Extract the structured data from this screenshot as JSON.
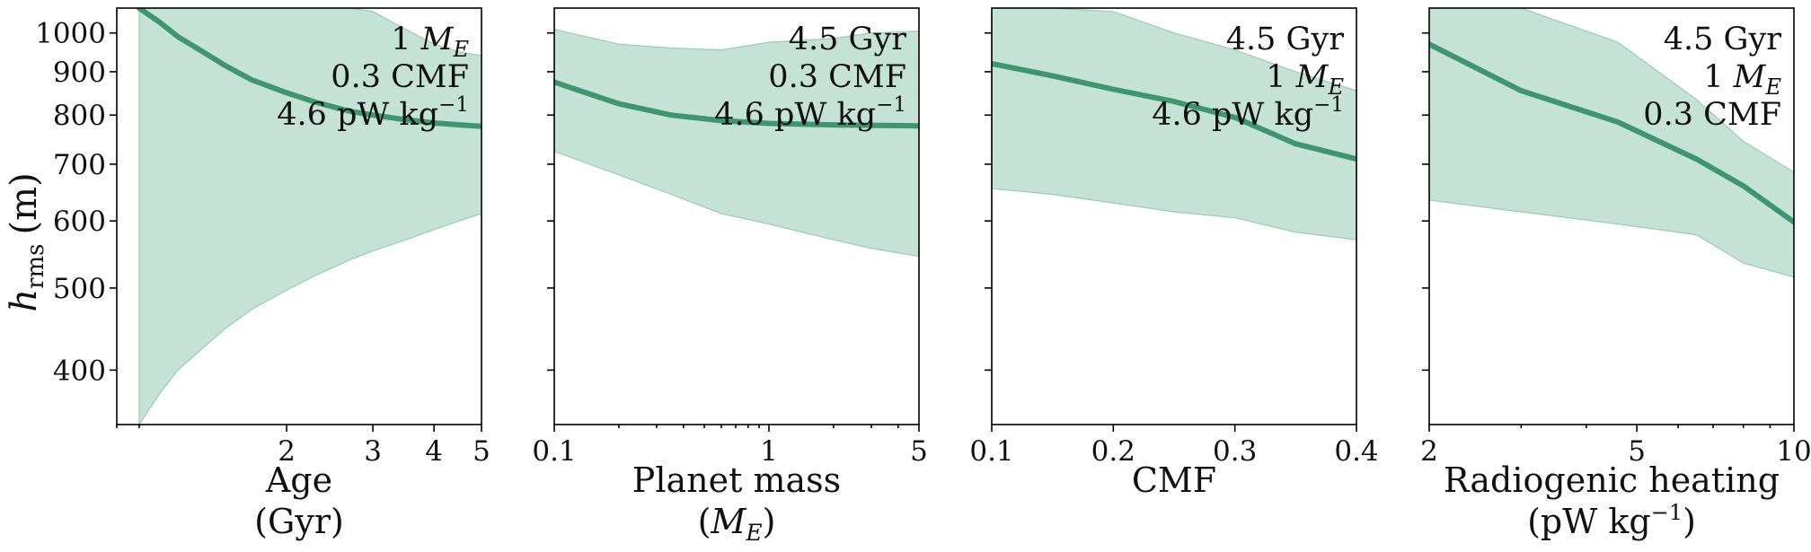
{
  "figure": {
    "ylabel": "h",
    "ylabel_sub": "rms",
    "ylabel_unit": "(m)",
    "colors": {
      "line": "#3e9671",
      "band_fill": "#c5e2d6",
      "band_edge": "#9ccbb6"
    }
  },
  "chart_data": [
    {
      "type": "line",
      "xlabel": "Age",
      "xlabel2": "(Gyr)",
      "xscale": "log",
      "xlim": [
        0.9,
        5
      ],
      "ylim": [
        345,
        1070
      ],
      "yscale": "log",
      "xticks": [
        {
          "v": 2,
          "label": "2"
        },
        {
          "v": 3,
          "label": "3"
        },
        {
          "v": 4,
          "label": "4"
        },
        {
          "v": 5,
          "label": "5"
        }
      ],
      "yticks": [
        {
          "v": 400,
          "label": "400"
        },
        {
          "v": 500,
          "label": "500"
        },
        {
          "v": 600,
          "label": "600"
        },
        {
          "v": 700,
          "label": "700"
        },
        {
          "v": 800,
          "label": "800"
        },
        {
          "v": 900,
          "label": "900"
        },
        {
          "v": 1000,
          "label": "1000"
        }
      ],
      "annotations": [
        "1 M",
        "0.3 CMF",
        "4.6 pW kg"
      ],
      "x": [
        1.0,
        1.1,
        1.2,
        1.35,
        1.5,
        1.7,
        2.0,
        2.3,
        2.7,
        3.0,
        3.5,
        4.0,
        4.5,
        5.0
      ],
      "series": [
        {
          "values": [
            1070,
            1030,
            990,
            950,
            915,
            880,
            850,
            828,
            808,
            800,
            790,
            783,
            779,
            776
          ]
        }
      ],
      "band_upper": [
        1070,
        1070,
        1070,
        1070,
        1070,
        1070,
        1070,
        1070,
        1070,
        1060,
        1010,
        970,
        950,
        940
      ],
      "band_lower": [
        345,
        375,
        400,
        425,
        448,
        472,
        497,
        518,
        540,
        553,
        570,
        586,
        600,
        612
      ]
    },
    {
      "type": "line",
      "xlabel": "Planet mass",
      "xlabel2": "(M",
      "xscale": "log",
      "xlim": [
        0.1,
        5
      ],
      "ylim": [
        345,
        1070
      ],
      "yscale": "log",
      "xticks": [
        {
          "v": 0.1,
          "label": "0.1"
        },
        {
          "v": 1,
          "label": "1"
        },
        {
          "v": 5,
          "label": "5"
        }
      ],
      "yticks": [
        {
          "v": 400,
          "label": "400"
        },
        {
          "v": 500,
          "label": "500"
        },
        {
          "v": 600,
          "label": "600"
        },
        {
          "v": 700,
          "label": "700"
        },
        {
          "v": 800,
          "label": "800"
        },
        {
          "v": 900,
          "label": "900"
        },
        {
          "v": 1000,
          "label": "1000"
        }
      ],
      "annotations": [
        "4.5 Gyr",
        "0.3 CMF",
        "4.6 pW kg"
      ],
      "x": [
        0.1,
        0.2,
        0.35,
        0.6,
        1.0,
        2.0,
        3.0,
        5.0
      ],
      "series": [
        {
          "values": [
            875,
            825,
            800,
            788,
            782,
            779,
            778,
            777
          ]
        }
      ],
      "band_upper": [
        1010,
        970,
        960,
        955,
        975,
        985,
        1000,
        1005
      ],
      "band_lower": [
        725,
        680,
        645,
        612,
        595,
        570,
        557,
        545
      ]
    },
    {
      "type": "line",
      "xlabel": "CMF",
      "xlabel2": "",
      "xscale": "linear",
      "xlim": [
        0.1,
        0.4
      ],
      "ylim": [
        345,
        1070
      ],
      "yscale": "log",
      "xticks": [
        {
          "v": 0.1,
          "label": "0.1"
        },
        {
          "v": 0.2,
          "label": "0.2"
        },
        {
          "v": 0.3,
          "label": "0.3"
        },
        {
          "v": 0.4,
          "label": "0.4"
        }
      ],
      "yticks": [
        {
          "v": 400,
          "label": "400"
        },
        {
          "v": 500,
          "label": "500"
        },
        {
          "v": 600,
          "label": "600"
        },
        {
          "v": 700,
          "label": "700"
        },
        {
          "v": 800,
          "label": "800"
        },
        {
          "v": 900,
          "label": "900"
        },
        {
          "v": 1000,
          "label": "1000"
        }
      ],
      "annotations": [
        "4.5 Gyr",
        "1 M",
        "4.6 pW kg"
      ],
      "x": [
        0.1,
        0.15,
        0.2,
        0.25,
        0.3,
        0.35,
        0.4
      ],
      "series": [
        {
          "values": [
            920,
            890,
            858,
            830,
            795,
            740,
            710
          ]
        }
      ],
      "band_upper": [
        1070,
        1070,
        1060,
        1000,
        955,
        900,
        855
      ],
      "band_lower": [
        655,
        645,
        630,
        615,
        605,
        582,
        570
      ]
    },
    {
      "type": "line",
      "xlabel": "Radiogenic heating",
      "xlabel2": "(pW kg",
      "xscale": "log",
      "xlim": [
        2,
        10
      ],
      "ylim": [
        345,
        1070
      ],
      "yscale": "log",
      "xticks": [
        {
          "v": 2,
          "label": "2"
        },
        {
          "v": 5,
          "label": "5"
        },
        {
          "v": 10,
          "label": "10"
        }
      ],
      "yticks": [
        {
          "v": 400,
          "label": "400"
        },
        {
          "v": 500,
          "label": "500"
        },
        {
          "v": 600,
          "label": "600"
        },
        {
          "v": 700,
          "label": "700"
        },
        {
          "v": 800,
          "label": "800"
        },
        {
          "v": 900,
          "label": "900"
        },
        {
          "v": 1000,
          "label": "1000"
        }
      ],
      "annotations": [
        "4.5 Gyr",
        "1 M",
        "0.3 CMF"
      ],
      "x": [
        2.0,
        3.0,
        4.6,
        6.5,
        8.0,
        10.0
      ],
      "series": [
        {
          "values": [
            970,
            855,
            785,
            710,
            660,
            598
          ]
        }
      ],
      "band_upper": [
        1070,
        1070,
        975,
        835,
        745,
        685
      ],
      "band_lower": [
        635,
        615,
        595,
        578,
        535,
        515
      ]
    }
  ]
}
